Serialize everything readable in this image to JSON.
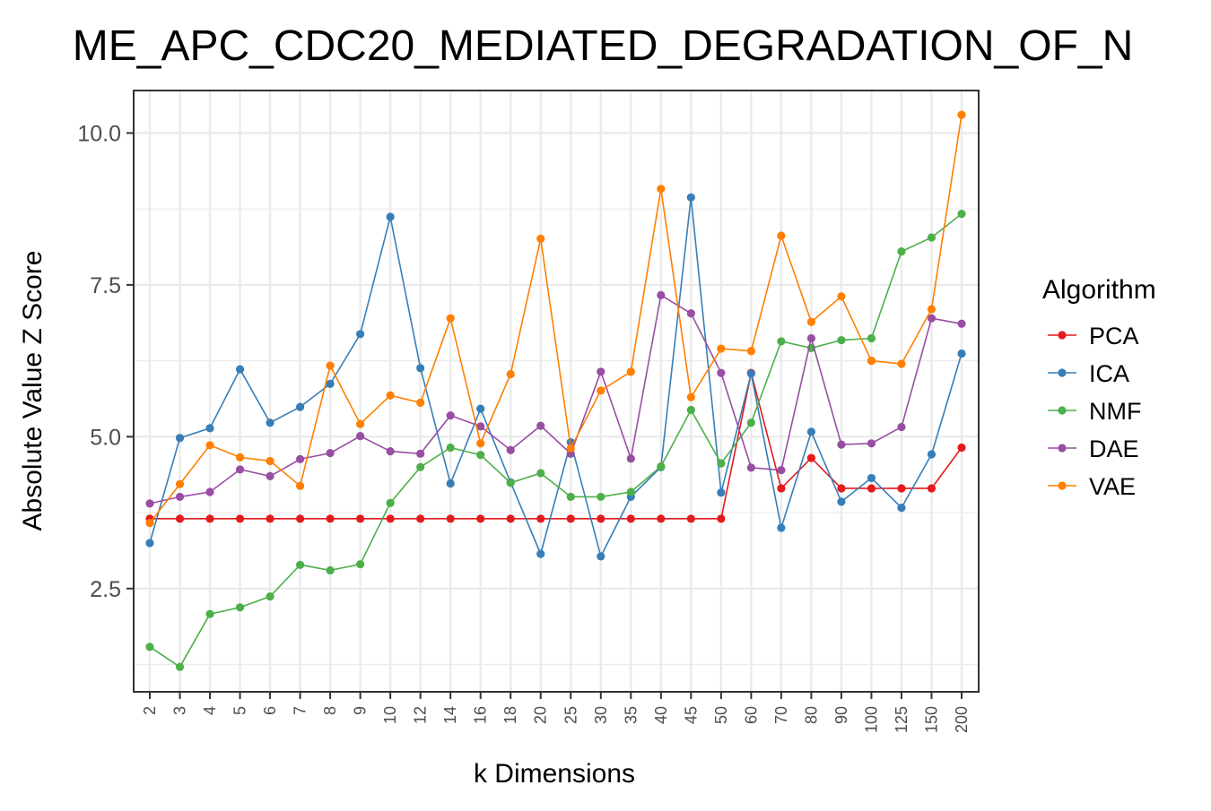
{
  "chart_data": {
    "type": "line",
    "title": "ME_APC_CDC20_MEDIATED_DEGRADATION_OF_N",
    "xlabel": "k Dimensions",
    "ylabel": "Absolute Value Z Score",
    "categories": [
      "2",
      "3",
      "4",
      "5",
      "6",
      "7",
      "8",
      "9",
      "10",
      "12",
      "14",
      "16",
      "18",
      "20",
      "25",
      "30",
      "35",
      "40",
      "45",
      "50",
      "60",
      "70",
      "80",
      "90",
      "100",
      "125",
      "150",
      "200"
    ],
    "ylim": [
      0.8,
      10.7
    ],
    "yticks": [
      2.5,
      5.0,
      7.5,
      10.0
    ],
    "ytick_labels": [
      "2.5",
      "5.0",
      "7.5",
      "10.0"
    ],
    "grid": true,
    "legend": {
      "title": "Algorithm",
      "position": "right"
    },
    "series": [
      {
        "name": "PCA",
        "color": "#E41A1C",
        "values": [
          3.65,
          3.65,
          3.65,
          3.65,
          3.65,
          3.65,
          3.65,
          3.65,
          3.65,
          3.65,
          3.65,
          3.65,
          3.65,
          3.65,
          3.65,
          3.65,
          3.65,
          3.65,
          3.65,
          3.65,
          6.05,
          4.15,
          4.65,
          4.15,
          4.15,
          4.15,
          4.15,
          4.82
        ]
      },
      {
        "name": "ICA",
        "color": "#377EB8",
        "values": [
          3.25,
          4.98,
          5.14,
          6.11,
          5.23,
          5.49,
          5.87,
          6.69,
          8.62,
          6.13,
          4.23,
          5.46,
          4.25,
          3.07,
          4.91,
          3.03,
          4.01,
          4.5,
          8.94,
          4.08,
          6.04,
          3.5,
          5.08,
          3.93,
          4.32,
          3.83,
          4.71,
          6.37
        ]
      },
      {
        "name": "NMF",
        "color": "#4DAF4A",
        "values": [
          1.54,
          1.21,
          2.08,
          2.19,
          2.37,
          2.89,
          2.8,
          2.9,
          3.91,
          4.5,
          4.82,
          4.7,
          4.24,
          4.4,
          4.01,
          4.01,
          4.09,
          4.51,
          5.44,
          4.56,
          5.23,
          6.57,
          6.46,
          6.59,
          6.62,
          8.05,
          8.28,
          8.67
        ]
      },
      {
        "name": "DAE",
        "color": "#984EA3",
        "values": [
          3.9,
          4.01,
          4.09,
          4.46,
          4.35,
          4.63,
          4.73,
          5.01,
          4.76,
          4.72,
          5.35,
          5.17,
          4.78,
          5.18,
          4.72,
          6.07,
          4.64,
          7.33,
          7.03,
          6.05,
          4.49,
          4.45,
          6.62,
          4.87,
          4.89,
          5.16,
          6.95,
          6.86
        ]
      },
      {
        "name": "VAE",
        "color": "#FF7F00",
        "values": [
          3.58,
          4.22,
          4.86,
          4.66,
          4.6,
          4.19,
          6.17,
          5.21,
          5.68,
          5.56,
          6.95,
          4.89,
          6.03,
          8.26,
          4.81,
          5.76,
          6.07,
          9.08,
          5.65,
          6.45,
          6.41,
          8.31,
          6.89,
          7.31,
          6.25,
          6.2,
          7.1,
          10.3
        ]
      }
    ]
  }
}
